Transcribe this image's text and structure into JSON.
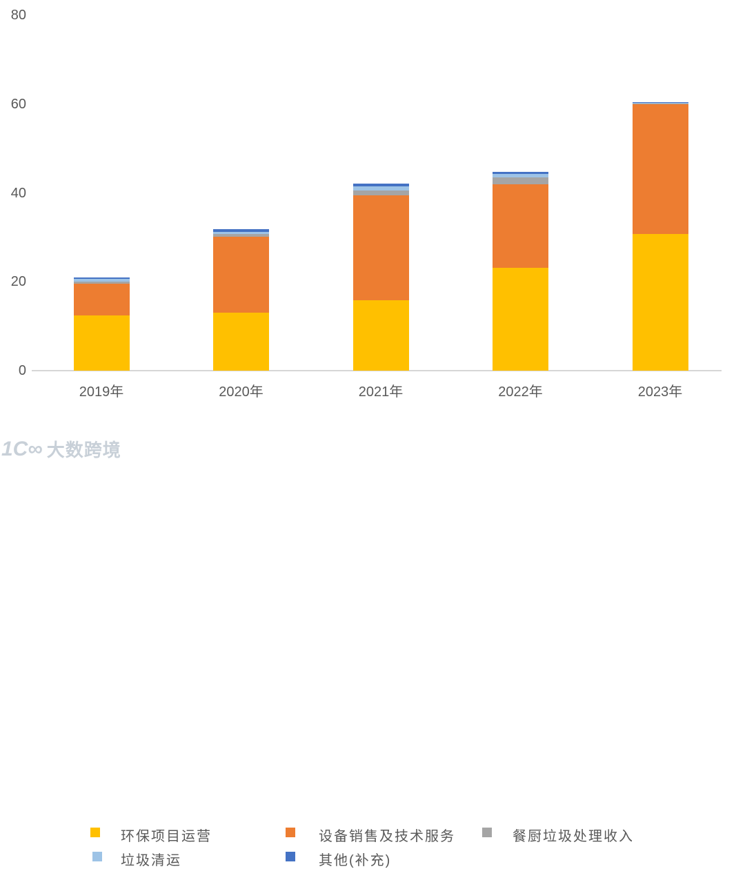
{
  "chart_data": {
    "type": "bar",
    "stacked": true,
    "title": "",
    "xlabel": "",
    "ylabel": "",
    "categories": [
      "2019年",
      "2020年",
      "2021年",
      "2022年",
      "2023年"
    ],
    "series": [
      {
        "name": "环保项目运营",
        "color": "#FFC000",
        "values": [
          12.5,
          13.1,
          15.8,
          23.1,
          30.7
        ]
      },
      {
        "name": "设备销售及技术服务",
        "color": "#ED7D31",
        "values": [
          7.0,
          17.1,
          23.6,
          18.9,
          29.3
        ]
      },
      {
        "name": "餐厨垃圾处理收入",
        "color": "#A5A5A5",
        "values": [
          0.6,
          0.5,
          1.2,
          1.5,
          0.1
        ]
      },
      {
        "name": "垃圾清运",
        "color": "#9DC3E6",
        "values": [
          0.6,
          0.6,
          0.9,
          0.8,
          0.1
        ]
      },
      {
        "name": "其他(补充)",
        "color": "#4472C4",
        "values": [
          0.2,
          0.6,
          0.6,
          0.5,
          0.3
        ]
      }
    ],
    "ylim": [
      0,
      80
    ],
    "yticks": [
      0,
      20,
      40,
      60,
      80
    ],
    "grid": false,
    "legend_position": "bottom",
    "axis_line_color": "#d6d6d6",
    "tick_label_color": "#595959"
  },
  "watermark": {
    "logo_text": "1C∞",
    "brand_text": "大数跨境"
  }
}
